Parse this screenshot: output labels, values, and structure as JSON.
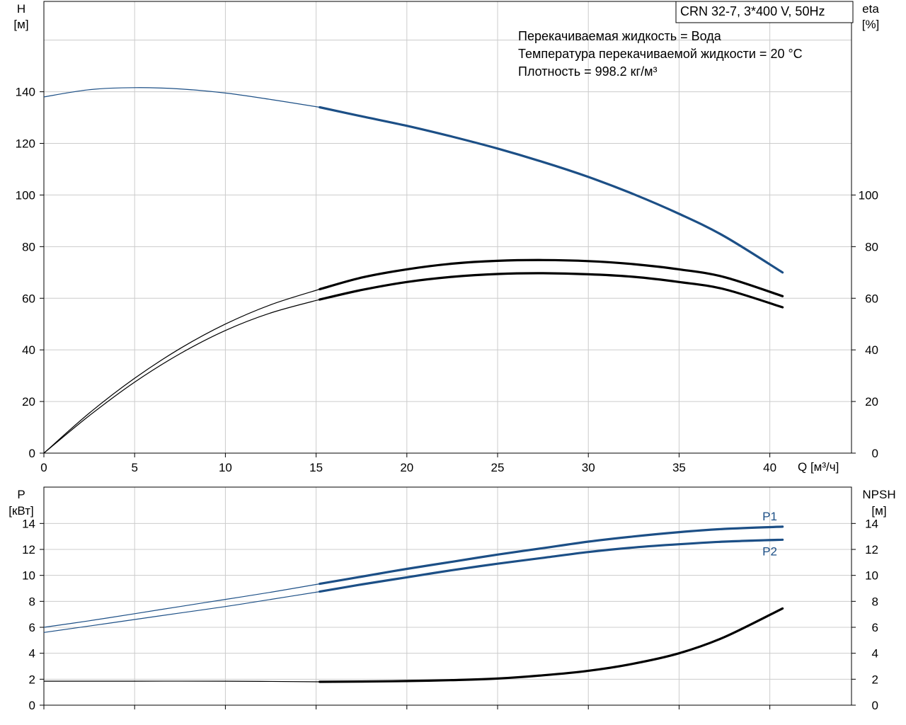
{
  "title": "CRN 32-7, 3*400 V, 50Hz",
  "info_lines": [
    "Перекачиваемая жидкость = Вода",
    "Температура перекачиваемой жидкости = 20 °C",
    "Плотность = 998.2 кг/м³"
  ],
  "colors": {
    "blue": "#1c4f86",
    "black": "#000000",
    "grid": "#cccccc"
  },
  "chart_data": [
    {
      "type": "line",
      "name": "head-efficiency",
      "x_label": "Q [м³/ч]",
      "y_left_label": [
        "H",
        "[м]"
      ],
      "y_right_label": [
        "eta",
        "[%]"
      ],
      "xlim": [
        0,
        44.5
      ],
      "ylim": [
        0,
        175
      ],
      "x_ticks": [
        0,
        5,
        10,
        15,
        20,
        25,
        30,
        35,
        40
      ],
      "y_left_ticks": [
        0,
        20,
        40,
        60,
        80,
        100,
        120,
        140
      ],
      "y_right_ticks": [
        0,
        20,
        40,
        60,
        80,
        100
      ],
      "grid": true,
      "series": [
        {
          "axis": "left",
          "color": "blue",
          "x": [
            0,
            2.5,
            5,
            7.5,
            10,
            12.5,
            15.2,
            17.5,
            20,
            22.5,
            25,
            27.5,
            30,
            32.5,
            35,
            37.5,
            40.7
          ],
          "values": [
            138,
            140.8,
            141.6,
            141.1,
            139.5,
            137,
            134,
            130.5,
            126.8,
            122.6,
            118,
            112.8,
            107,
            100.3,
            92.7,
            84,
            70
          ]
        },
        {
          "axis": "right",
          "color": "black",
          "x": [
            0,
            2.5,
            5,
            7.5,
            10,
            12.5,
            15.2,
            17.5,
            20,
            22.5,
            25,
            27.5,
            30,
            32.5,
            35,
            37.5,
            40.7
          ],
          "values": [
            0,
            15.5,
            29,
            40.5,
            50,
            57.5,
            63.5,
            68,
            71.2,
            73.4,
            74.5,
            74.8,
            74.4,
            73.2,
            71.2,
            68.2,
            60.8
          ]
        },
        {
          "axis": "right",
          "color": "black",
          "x": [
            0,
            2.5,
            5,
            7.5,
            10,
            12.5,
            15.2,
            17.5,
            20,
            22.5,
            25,
            27.5,
            30,
            32.5,
            35,
            37.5,
            40.7
          ],
          "values": [
            0,
            14.5,
            27.5,
            38.5,
            47.5,
            54.3,
            59.5,
            63.2,
            66.3,
            68.3,
            69.4,
            69.7,
            69.3,
            68.3,
            66.3,
            63.5,
            56.5
          ]
        }
      ]
    },
    {
      "type": "line",
      "name": "power-npsh",
      "y_left_label": [
        "P",
        "[кВт]"
      ],
      "y_right_label": [
        "NPSH",
        "[м]"
      ],
      "xlim": [
        0,
        44.5
      ],
      "ylim": [
        0,
        16.8
      ],
      "y_left_ticks": [
        0,
        2,
        4,
        6,
        8,
        10,
        12,
        14
      ],
      "y_right_ticks": [
        0,
        2,
        4,
        6,
        8,
        10,
        12,
        14
      ],
      "grid": true,
      "series": [
        {
          "name": "P1",
          "axis": "left",
          "color": "blue",
          "x": [
            0,
            2.5,
            5,
            7.5,
            10,
            12.5,
            15.2,
            17.5,
            20,
            22.5,
            25,
            27.5,
            30,
            32.5,
            35,
            37.5,
            40.7
          ],
          "values": [
            6,
            6.5,
            7.05,
            7.6,
            8.15,
            8.7,
            9.35,
            9.9,
            10.5,
            11.05,
            11.6,
            12.1,
            12.6,
            13,
            13.33,
            13.58,
            13.75
          ]
        },
        {
          "name": "P2",
          "axis": "left",
          "color": "blue",
          "x": [
            0,
            2.5,
            5,
            7.5,
            10,
            12.5,
            15.2,
            17.5,
            20,
            22.5,
            25,
            27.5,
            30,
            32.5,
            35,
            37.5,
            40.7
          ],
          "values": [
            5.6,
            6.1,
            6.6,
            7.1,
            7.6,
            8.15,
            8.75,
            9.3,
            9.85,
            10.4,
            10.9,
            11.35,
            11.8,
            12.15,
            12.4,
            12.6,
            12.75
          ]
        },
        {
          "axis": "right",
          "color": "black",
          "x": [
            0,
            5,
            10,
            15.2,
            17.5,
            20,
            22.5,
            25,
            27.5,
            30,
            32.5,
            35,
            37.5,
            40.7
          ],
          "values": [
            1.85,
            1.85,
            1.85,
            1.8,
            1.82,
            1.86,
            1.93,
            2.05,
            2.3,
            2.65,
            3.2,
            4,
            5.25,
            7.45
          ]
        }
      ]
    }
  ]
}
